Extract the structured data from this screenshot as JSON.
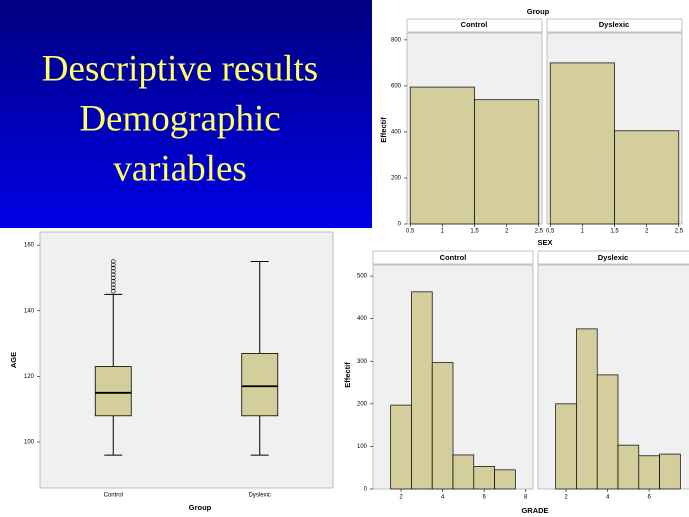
{
  "slide": {
    "title_lines": [
      "Descriptive results",
      "Demographic",
      "variables"
    ]
  },
  "chart_data": [
    {
      "type": "histogram",
      "title": "Group",
      "xlabel": "SEX",
      "ylabel": "Effectif",
      "color": "#d3ce9c",
      "bins": [
        0.5,
        1.5,
        2.5
      ],
      "series": [
        {
          "name": "Control",
          "values": [
            595,
            540
          ]
        },
        {
          "name": "Dyslexic",
          "values": [
            700,
            405
          ]
        }
      ],
      "xlim": [
        0.45,
        2.55
      ],
      "xticks": [
        {
          "value": 0.5,
          "label": "0,5"
        },
        1,
        {
          "value": 1.5,
          "label": "1,5"
        },
        2,
        {
          "value": 2.5,
          "label": "2,5"
        }
      ],
      "ylim": [
        0,
        830
      ],
      "yticks": [
        0,
        200,
        400,
        600,
        800
      ]
    },
    {
      "type": "box",
      "xlabel": "Group",
      "ylabel": "AGE",
      "color": "#d3ce9c",
      "categories": [
        "Control",
        "Dyslexic"
      ],
      "boxes": [
        {
          "whislo": 96,
          "q1": 108,
          "med": 115,
          "q3": 123,
          "whishi": 145,
          "fliers": [
            146,
            147,
            148,
            149,
            150,
            151,
            152,
            153,
            154,
            155
          ]
        },
        {
          "whislo": 96,
          "q1": 108,
          "med": 117,
          "q3": 127,
          "whishi": 155,
          "fliers": []
        }
      ],
      "ylim": [
        86,
        164
      ],
      "yticks": [
        100,
        120,
        140,
        160
      ]
    },
    {
      "type": "histogram",
      "xlabel": "GRADE",
      "ylabel": "Effectif",
      "color": "#d3ce9c",
      "bins": [
        1.5,
        2.5,
        3.5,
        4.5,
        5.5,
        6.5,
        7.5
      ],
      "series": [
        {
          "name": "Control",
          "values": [
            197,
            463,
            297,
            80,
            53,
            45
          ]
        },
        {
          "name": "Dyslexic",
          "values": [
            200,
            376,
            268,
            103,
            78,
            82
          ]
        }
      ],
      "xlim": [
        0.65,
        8.35
      ],
      "xticks": [
        2,
        4,
        6,
        8
      ],
      "ylim": [
        0,
        526
      ],
      "yticks": [
        0,
        100,
        200,
        300,
        400,
        500
      ]
    }
  ]
}
